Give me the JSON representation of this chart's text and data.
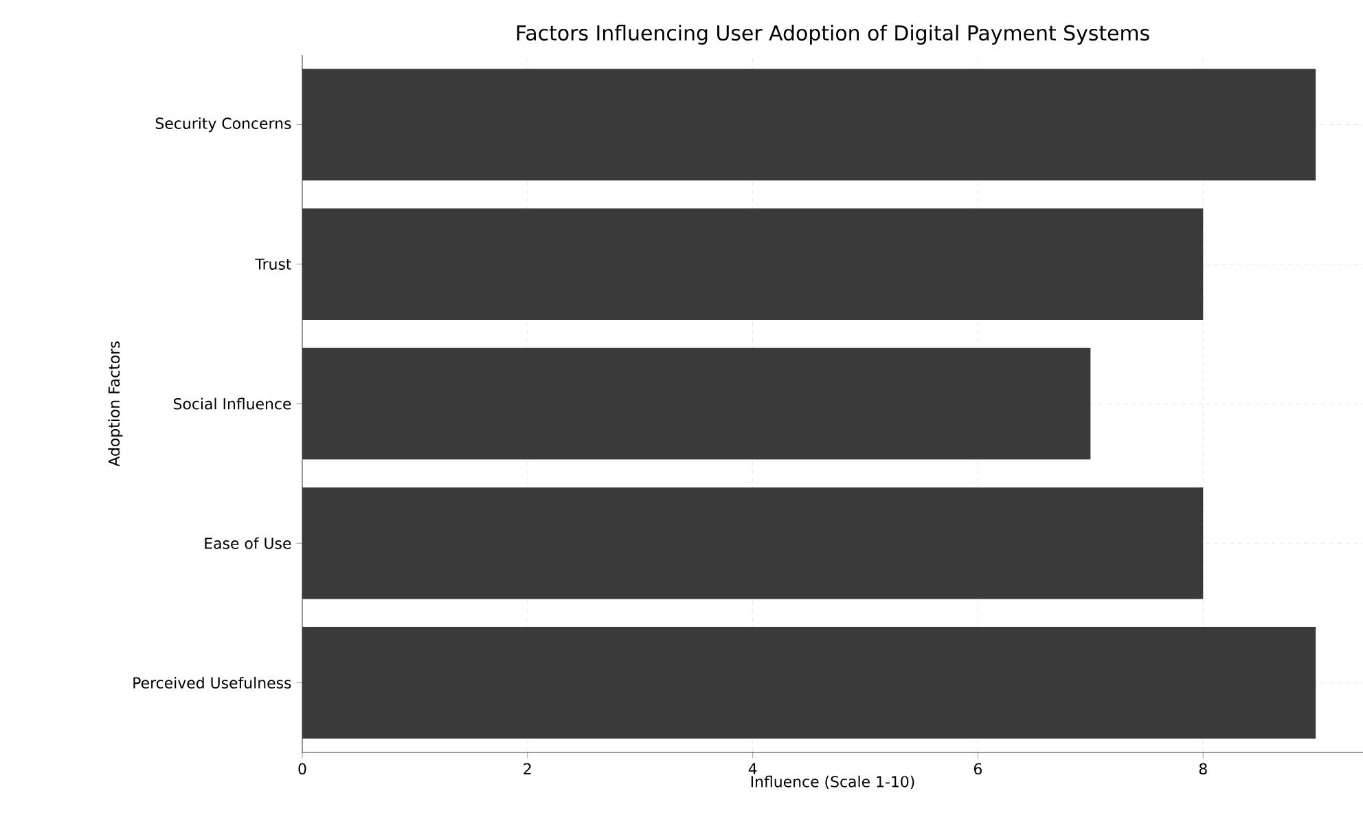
{
  "chart_data": {
    "type": "bar",
    "orientation": "horizontal",
    "title": "Factors Influencing User Adoption of Digital Payment Systems",
    "xlabel": "Influence (Scale 1-10)",
    "ylabel": "Adoption Factors",
    "categories": [
      "Security Concerns",
      "Trust",
      "Social Influence",
      "Ease of Use",
      "Perceived Usefulness"
    ],
    "values": [
      9,
      8,
      7,
      8,
      9
    ],
    "color": "#3a3a3a",
    "xlim": [
      0,
      9.42
    ],
    "xticks": [
      0,
      2,
      4,
      6,
      8
    ],
    "grid": true
  }
}
